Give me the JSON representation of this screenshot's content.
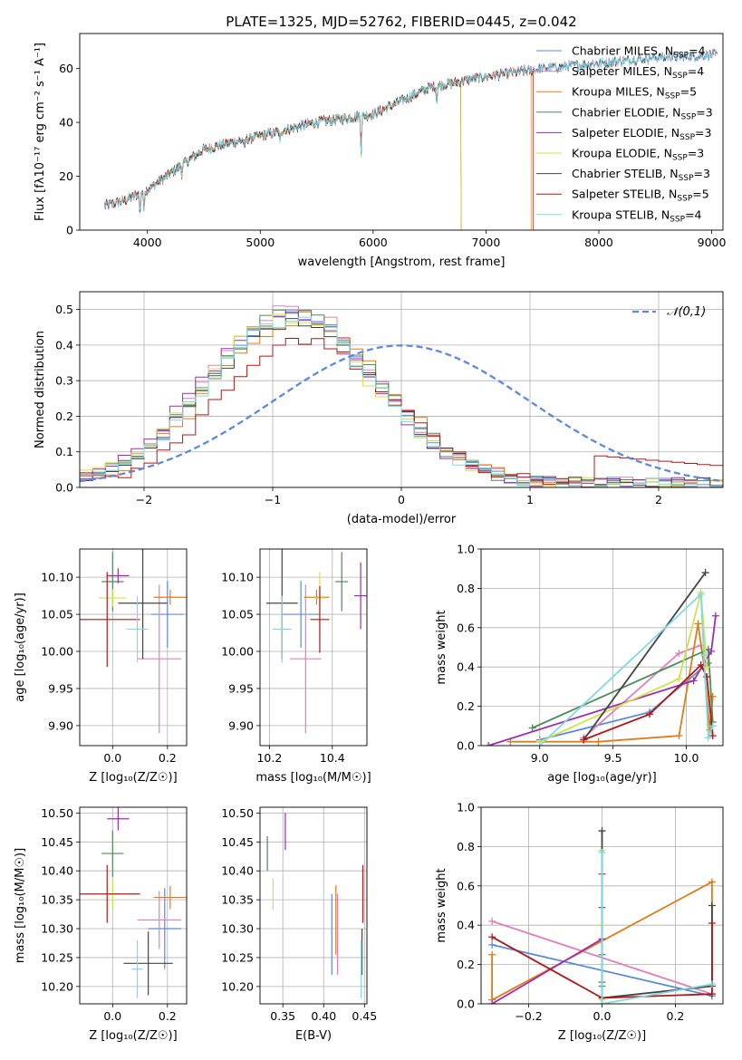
{
  "figure_title": "PLATE=1325, MJD=52762, FIBERID=0445, z=0.042",
  "colors": {
    "Chabrier MILES": "#5b8ad8",
    "Salpeter MILES": "#e07fbf",
    "Kroupa MILES": "#e07b1a",
    "Chabrier ELODIE": "#4c8c5a",
    "Salpeter ELODIE": "#9b2fb0",
    "Kroupa ELODIE": "#d3e04a",
    "Chabrier STELIB": "#444444",
    "Salpeter STELIB": "#b01818",
    "Kroupa STELIB": "#7fd9e0"
  },
  "chart_data": [
    {
      "id": "spectrum",
      "type": "line",
      "xlabel": "wavelength [Angstrom, rest frame]",
      "ylabel": "Flux [fλ10⁻¹⁷ erg cm⁻² s⁻¹ A⁻¹]",
      "xlim": [
        3400,
        9100
      ],
      "ylim": [
        0,
        73
      ],
      "xticks": [
        4000,
        5000,
        6000,
        7000,
        8000,
        9000
      ],
      "yticks": [
        0,
        20,
        40,
        60
      ],
      "grid": false,
      "legend_position": "top-right",
      "continuum": {
        "x": [
          3620,
          3800,
          4000,
          4200,
          4500,
          5000,
          5500,
          6000,
          6500,
          7000,
          7500,
          8000,
          8500,
          9000
        ],
        "y": [
          9,
          11,
          15,
          21,
          30,
          35,
          40,
          43,
          53,
          57,
          60,
          62,
          64,
          65
        ]
      },
      "series": [
        {
          "name": "Chabrier MILES",
          "nssp": "4",
          "end": 9050
        },
        {
          "name": "Salpeter MILES",
          "nssp": "4",
          "end": 9050
        },
        {
          "name": "Kroupa MILES",
          "nssp": "5",
          "end": 7400
        },
        {
          "name": "Chabrier ELODIE",
          "nssp": "3",
          "end": 6780
        },
        {
          "name": "Salpeter ELODIE",
          "nssp": "3",
          "end": 6780
        },
        {
          "name": "Kroupa ELODIE",
          "nssp": "3",
          "end": 6780
        },
        {
          "name": "Chabrier STELIB",
          "nssp": "3",
          "end": 9050
        },
        {
          "name": "Salpeter STELIB",
          "nssp": "5",
          "end": 7420
        },
        {
          "name": "Kroupa STELIB",
          "nssp": "4",
          "end": 9050
        }
      ]
    },
    {
      "id": "residuals",
      "type": "line",
      "xlabel": "(data-model)/error",
      "ylabel": "Normed distribution",
      "xlim": [
        -2.5,
        2.5
      ],
      "ylim": [
        0,
        0.55
      ],
      "xticks": [
        -2,
        -1,
        0,
        1,
        2
      ],
      "yticks": [
        0.0,
        0.1,
        0.2,
        0.3,
        0.4,
        0.5
      ],
      "grid": true,
      "bin_width": 0.1,
      "legend_position": "top-right",
      "reference": {
        "name": "𝒩(0,1)",
        "mean": 0,
        "sigma": 1
      },
      "histograms": {
        "profile": [
          0.028,
          0.03,
          0.035,
          0.04,
          0.045,
          0.05,
          0.06,
          0.07,
          0.08,
          0.092,
          0.105,
          0.12,
          0.135,
          0.15,
          0.17,
          0.19,
          0.21,
          0.23,
          0.25,
          0.27,
          0.29,
          0.31,
          0.33,
          0.35,
          0.37,
          0.39,
          0.41,
          0.43,
          0.44,
          0.45,
          0.46,
          0.47,
          0.47,
          0.48,
          0.48,
          0.47,
          0.47,
          0.46,
          0.45,
          0.44,
          0.42,
          0.4,
          0.38,
          0.36,
          0.34,
          0.32,
          0.3,
          0.28,
          0.26,
          0.24,
          0.22,
          0.2,
          0.18,
          0.16,
          0.145,
          0.13,
          0.115,
          0.1,
          0.09,
          0.08,
          0.07,
          0.06,
          0.052,
          0.045,
          0.04,
          0.035,
          0.03,
          0.028,
          0.025,
          0.022,
          0.02,
          0.018,
          0.017,
          0.016,
          0.015,
          0.015,
          0.014,
          0.014,
          0.013,
          0.013,
          0.013,
          0.012,
          0.012,
          0.012,
          0.011,
          0.011,
          0.011,
          0.01,
          0.01,
          0.01,
          0.01,
          0.01,
          0.01,
          0.01,
          0.01,
          0.01,
          0.01,
          0.01,
          0.01,
          0.01
        ],
        "offsets": [
          {
            "name": "Chabrier MILES",
            "shift": 0.02,
            "scale": 1.02
          },
          {
            "name": "Salpeter MILES",
            "shift": 0.0,
            "scale": 1.05
          },
          {
            "name": "Kroupa MILES",
            "shift": 0.05,
            "scale": 1.0
          },
          {
            "name": "Chabrier ELODIE",
            "shift": -0.02,
            "scale": 1.04
          },
          {
            "name": "Salpeter ELODIE",
            "shift": -0.05,
            "scale": 1.01
          },
          {
            "name": "Kroupa ELODIE",
            "shift": -0.03,
            "scale": 1.0
          },
          {
            "name": "Chabrier STELIB",
            "shift": 0.01,
            "scale": 0.98
          },
          {
            "name": "Salpeter STELIB",
            "shift": 0.1,
            "scale": 0.86
          },
          {
            "name": "Kroupa STELIB",
            "shift": 0.0,
            "scale": 0.99
          }
        ]
      }
    },
    {
      "id": "age_vs_Z",
      "type": "scatter",
      "xlabel": "Z [log₁₀(Z/Z☉)]",
      "ylabel": "age  [log₁₀(age/yr)]",
      "xlim": [
        -0.12,
        0.27
      ],
      "ylim": [
        9.873,
        10.138
      ],
      "xticks": [
        0.0,
        0.2
      ],
      "yticks": [
        9.9,
        9.95,
        10.0,
        10.05,
        10.1
      ],
      "grid": true,
      "points": [
        {
          "series": "Chabrier MILES",
          "x": 0.2,
          "xerr": 0.06,
          "y": 10.05,
          "yerr": 0.045
        },
        {
          "series": "Salpeter MILES",
          "x": 0.17,
          "xerr": 0.08,
          "y": 9.99,
          "yerr": 0.1
        },
        {
          "series": "Kroupa MILES",
          "x": 0.21,
          "xerr": 0.06,
          "y": 10.073,
          "yerr": 0.01
        },
        {
          "series": "Chabrier ELODIE",
          "x": 0.0,
          "xerr": 0.04,
          "y": 10.094,
          "yerr": 0.04
        },
        {
          "series": "Salpeter ELODIE",
          "x": 0.02,
          "xerr": 0.04,
          "y": 10.102,
          "yerr": 0.01
        },
        {
          "series": "Kroupa ELODIE",
          "x": 0.0,
          "xerr": 0.05,
          "y": 10.072,
          "yerr": 0.012
        },
        {
          "series": "Chabrier STELIB",
          "x": 0.11,
          "xerr": 0.09,
          "y": 10.065,
          "yerr": 0.075
        },
        {
          "series": "Salpeter STELIB",
          "x": -0.02,
          "xerr": 0.12,
          "y": 10.043,
          "yerr": 0.064
        },
        {
          "series": "Kroupa STELIB",
          "x": 0.09,
          "xerr": 0.04,
          "y": 10.03,
          "yerr": 0.045
        }
      ]
    },
    {
      "id": "age_vs_mass",
      "type": "scatter",
      "xlabel": "mass [log₁₀(M/M☉)]",
      "ylabel": "",
      "xlim": [
        10.17,
        10.51
      ],
      "ylim": [
        9.873,
        10.138
      ],
      "xticks": [
        10.2,
        10.4
      ],
      "yticks": [
        9.9,
        9.95,
        10.0,
        10.05,
        10.1
      ],
      "grid": true,
      "points": [
        {
          "series": "Chabrier MILES",
          "x": 10.3,
          "xerr": 0.06,
          "y": 10.05,
          "yerr": 0.045
        },
        {
          "series": "Salpeter MILES",
          "x": 10.315,
          "xerr": 0.05,
          "y": 9.99,
          "yerr": 0.1
        },
        {
          "series": "Kroupa MILES",
          "x": 10.35,
          "xerr": 0.04,
          "y": 10.073,
          "yerr": 0.01
        },
        {
          "series": "Chabrier ELODIE",
          "x": 10.43,
          "xerr": 0.02,
          "y": 10.094,
          "yerr": 0.04
        },
        {
          "series": "Salpeter ELODIE",
          "x": 10.49,
          "xerr": 0.02,
          "y": 10.075,
          "yerr": 0.045
        },
        {
          "series": "Kroupa ELODIE",
          "x": 10.36,
          "xerr": 0.02,
          "y": 10.072,
          "yerr": 0.035
        },
        {
          "series": "Chabrier STELIB",
          "x": 10.24,
          "xerr": 0.05,
          "y": 10.065,
          "yerr": 0.075
        },
        {
          "series": "Salpeter STELIB",
          "x": 10.36,
          "xerr": 0.03,
          "y": 10.043,
          "yerr": 0.045
        },
        {
          "series": "Kroupa STELIB",
          "x": 10.24,
          "xerr": 0.03,
          "y": 10.03,
          "yerr": 0.045
        }
      ]
    },
    {
      "id": "weight_vs_age",
      "type": "line",
      "xlabel": "age  [log₁₀(age/yr)]",
      "ylabel": "mass weight",
      "xlim": [
        8.6,
        10.25
      ],
      "ylim": [
        0.0,
        1.0
      ],
      "xticks": [
        9.0,
        9.5,
        10.0
      ],
      "yticks": [
        0.0,
        0.2,
        0.4,
        0.6,
        0.8,
        1.0
      ],
      "grid": true,
      "series": [
        {
          "name": "Chabrier MILES",
          "x": [
            9.0,
            9.75,
            10.15
          ],
          "y": [
            0.03,
            0.17,
            0.42
          ]
        },
        {
          "name": "Salpeter MILES",
          "x": [
            9.3,
            9.95,
            10.1
          ],
          "y": [
            0.04,
            0.47,
            0.51
          ]
        },
        {
          "name": "Kroupa MILES",
          "x": [
            8.8,
            9.4,
            9.95,
            10.08,
            10.12,
            10.16,
            10.18
          ],
          "y": [
            0.02,
            0.02,
            0.05,
            0.62,
            0.41,
            0.08,
            0.25
          ]
        },
        {
          "name": "Chabrier ELODIE",
          "x": [
            8.95,
            10.15,
            10.18
          ],
          "y": [
            0.09,
            0.49,
            0.12
          ]
        },
        {
          "name": "Salpeter ELODIE",
          "x": [
            8.65,
            10.05,
            10.17,
            10.2
          ],
          "y": [
            0.0,
            0.33,
            0.48,
            0.66
          ]
        },
        {
          "name": "Kroupa ELODIE",
          "x": [
            9.0,
            9.95,
            10.1,
            10.14
          ],
          "y": [
            0.02,
            0.34,
            0.78,
            0.4
          ]
        },
        {
          "name": "Chabrier STELIB",
          "x": [
            9.3,
            10.13
          ],
          "y": [
            0.03,
            0.88
          ]
        },
        {
          "name": "Salpeter STELIB",
          "x": [
            9.3,
            9.75,
            10.1,
            10.14,
            10.18
          ],
          "y": [
            0.03,
            0.16,
            0.41,
            0.35,
            0.05
          ]
        },
        {
          "name": "Kroupa STELIB",
          "x": [
            9.0,
            10.1,
            10.12,
            10.15,
            10.18
          ],
          "y": [
            0.0,
            0.77,
            0.46,
            0.04,
            0.1
          ]
        }
      ]
    },
    {
      "id": "mass_vs_Z",
      "type": "scatter",
      "xlabel": "Z [log₁₀(Z/Z☉)]",
      "ylabel": "mass [log₁₀(M/M☉)]",
      "xlim": [
        -0.12,
        0.27
      ],
      "ylim": [
        10.17,
        10.51
      ],
      "xticks": [
        0.0,
        0.2
      ],
      "yticks": [
        10.2,
        10.25,
        10.3,
        10.35,
        10.4,
        10.45,
        10.5
      ],
      "grid": true,
      "points": [
        {
          "series": "Chabrier MILES",
          "x": 0.19,
          "xerr": 0.06,
          "y": 10.3,
          "yerr": 0.07
        },
        {
          "series": "Salpeter MILES",
          "x": 0.17,
          "xerr": 0.08,
          "y": 10.315,
          "yerr": 0.05
        },
        {
          "series": "Kroupa MILES",
          "x": 0.21,
          "xerr": 0.06,
          "y": 10.354,
          "yerr": 0.02
        },
        {
          "series": "Chabrier ELODIE",
          "x": 0.0,
          "xerr": 0.04,
          "y": 10.43,
          "yerr": 0.04
        },
        {
          "series": "Salpeter ELODIE",
          "x": 0.02,
          "xerr": 0.04,
          "y": 10.49,
          "yerr": 0.02
        },
        {
          "series": "Kroupa ELODIE",
          "x": 0.0,
          "xerr": 0.03,
          "y": 10.36,
          "yerr": 0.025
        },
        {
          "series": "Chabrier STELIB",
          "x": 0.13,
          "xerr": 0.09,
          "y": 10.24,
          "yerr": 0.055
        },
        {
          "series": "Salpeter STELIB",
          "x": -0.02,
          "xerr": 0.12,
          "y": 10.36,
          "yerr": 0.05
        },
        {
          "series": "Kroupa STELIB",
          "x": 0.09,
          "xerr": 0.02,
          "y": 10.23,
          "yerr": 0.05
        }
      ]
    },
    {
      "id": "mass_vs_ebv",
      "type": "scatter",
      "xlabel": "E(B-V)",
      "ylabel": "",
      "xlim": [
        0.322,
        0.453
      ],
      "ylim": [
        10.17,
        10.51
      ],
      "xticks": [
        0.35,
        0.4,
        0.45
      ],
      "yticks": [
        10.2,
        10.25,
        10.3,
        10.35,
        10.4,
        10.45,
        10.5
      ],
      "grid": true,
      "points": [
        {
          "series": "Chabrier MILES",
          "x": 0.41,
          "xerr": 0,
          "y": 10.29,
          "yerr": 0.07
        },
        {
          "series": "Salpeter MILES",
          "x": 0.417,
          "xerr": 0,
          "y": 10.29,
          "yerr": 0.07
        },
        {
          "series": "Kroupa MILES",
          "x": 0.415,
          "xerr": 0,
          "y": 10.315,
          "yerr": 0.06
        },
        {
          "series": "Chabrier ELODIE",
          "x": 0.331,
          "xerr": 0,
          "y": 10.43,
          "yerr": 0.03
        },
        {
          "series": "Salpeter ELODIE",
          "x": 0.353,
          "xerr": 0,
          "y": 10.468,
          "yerr": 0.032
        },
        {
          "series": "Kroupa ELODIE",
          "x": 0.338,
          "xerr": 0,
          "y": 10.36,
          "yerr": 0.027
        },
        {
          "series": "Chabrier STELIB",
          "x": 0.447,
          "xerr": 0,
          "y": 10.26,
          "yerr": 0.04
        },
        {
          "series": "Salpeter STELIB",
          "x": 0.448,
          "xerr": 0,
          "y": 10.36,
          "yerr": 0.05
        },
        {
          "series": "Kroupa STELIB",
          "x": 0.446,
          "xerr": 0,
          "y": 10.23,
          "yerr": 0.05
        }
      ]
    },
    {
      "id": "weight_vs_Z",
      "type": "line",
      "xlabel": "Z [log₁₀(Z/Z☉)]",
      "ylabel": "mass weight",
      "xlim": [
        -0.33,
        0.33
      ],
      "ylim": [
        0.0,
        1.0
      ],
      "xticks": [
        -0.2,
        0.0,
        0.2
      ],
      "yticks": [
        0.0,
        0.2,
        0.4,
        0.6,
        0.8,
        1.0
      ],
      "grid": true,
      "series": [
        {
          "name": "Chabrier MILES",
          "x": [
            -0.3,
            0.3
          ],
          "y": [
            0.3,
            0.04
          ]
        },
        {
          "name": "Salpeter MILES",
          "x": [
            -0.3,
            0.3
          ],
          "y": [
            0.42,
            0.05
          ]
        },
        {
          "name": "Kroupa MILES",
          "x": [
            -0.3,
            -0.3,
            0.3,
            0.3
          ],
          "y": [
            0.25,
            0.02,
            0.62,
            0.05
          ]
        },
        {
          "name": "Chabrier ELODIE",
          "x": [
            0.0,
            0.0,
            0.0,
            0.0
          ],
          "y": [
            0.11,
            0.49,
            0.25,
            0.09
          ]
        },
        {
          "name": "Salpeter ELODIE",
          "x": [
            -0.3,
            0.0,
            0.0
          ],
          "y": [
            0.0,
            0.33,
            0.66
          ]
        },
        {
          "name": "Kroupa ELODIE",
          "x": [
            0.0,
            0.0,
            0.0
          ],
          "y": [
            0.02,
            0.78,
            0.4
          ]
        },
        {
          "name": "Chabrier STELIB",
          "x": [
            0.0,
            0.0,
            0.3,
            0.3
          ],
          "y": [
            0.88,
            0.03,
            0.09,
            0.5
          ]
        },
        {
          "name": "Salpeter STELIB",
          "x": [
            -0.3,
            0.0,
            0.3,
            0.3
          ],
          "y": [
            0.34,
            0.03,
            0.05,
            0.41
          ]
        },
        {
          "name": "Kroupa STELIB",
          "x": [
            0.0,
            0.0,
            0.3
          ],
          "y": [
            0.77,
            0.0,
            0.1
          ]
        }
      ]
    }
  ]
}
